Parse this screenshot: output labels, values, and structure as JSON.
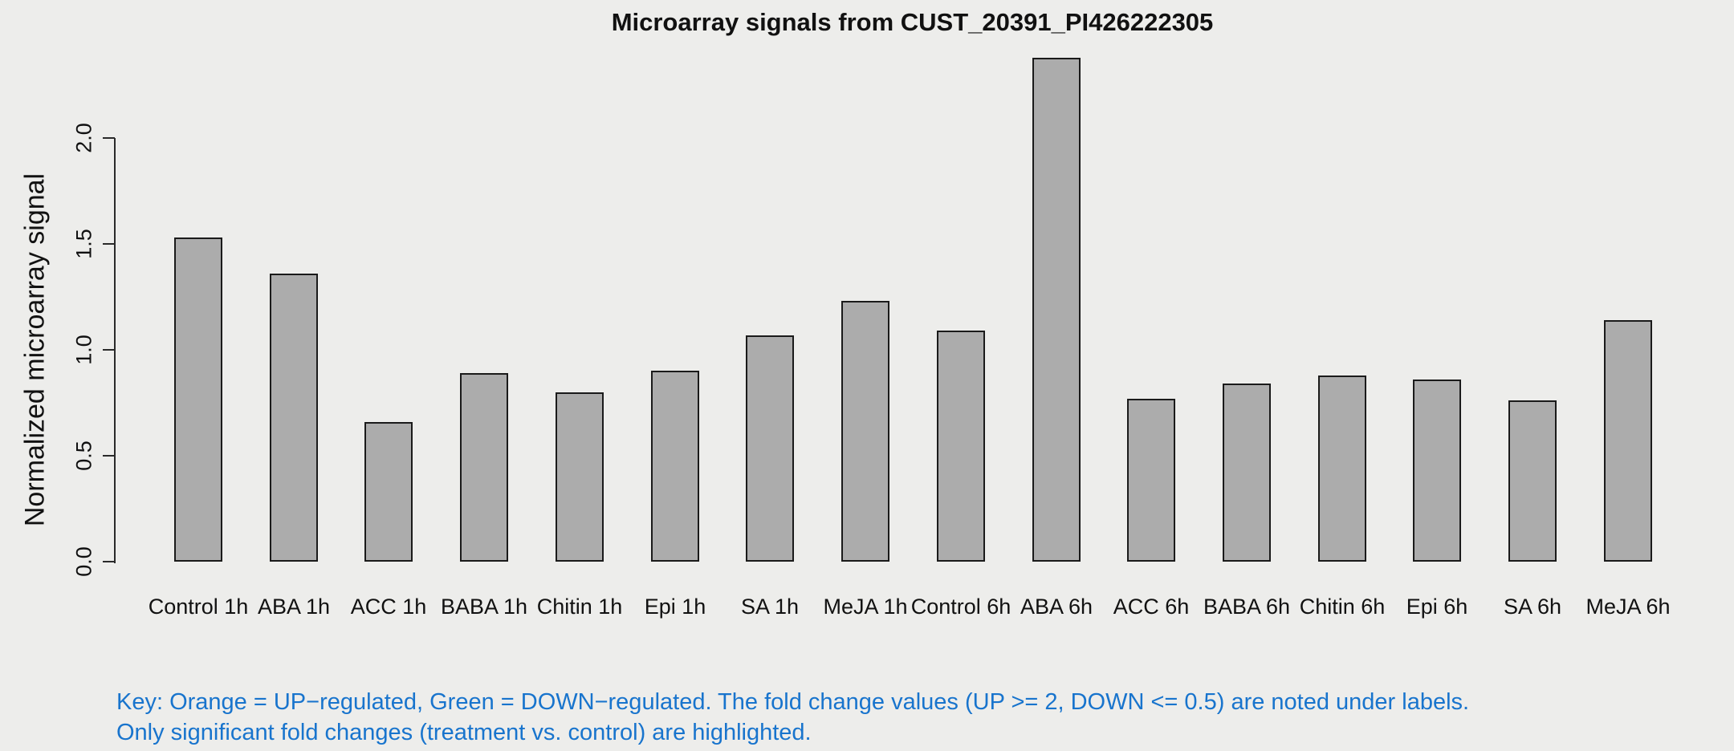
{
  "chart_data": {
    "type": "bar",
    "title": "Microarray signals from CUST_20391_PI426222305",
    "xlabel": "",
    "ylabel": "Normalized microarray signal",
    "categories": [
      "Control 1h",
      "ABA 1h",
      "ACC 1h",
      "BABA 1h",
      "Chitin 1h",
      "Epi 1h",
      "SA 1h",
      "MeJA 1h",
      "Control 6h",
      "ABA 6h",
      "ACC 6h",
      "BABA 6h",
      "Chitin 6h",
      "Epi 6h",
      "SA 6h",
      "MeJA 6h"
    ],
    "values": [
      1.53,
      1.36,
      0.66,
      0.89,
      0.8,
      0.9,
      1.07,
      1.23,
      1.09,
      2.38,
      0.77,
      0.84,
      0.88,
      0.86,
      0.76,
      1.14
    ],
    "yticks": [
      0.0,
      0.5,
      1.0,
      1.5,
      2.0
    ],
    "ytick_labels": [
      "0.0",
      "0.5",
      "1.0",
      "1.5",
      "2.0"
    ],
    "ylim": [
      0,
      2.43
    ],
    "grid": false,
    "legend": null,
    "colors": {
      "background": "#EDEDEB",
      "bar_fill": "#ACACAC",
      "bar_border": "#1A1A1A",
      "axis": "#2A2A2A",
      "text": "#111111"
    }
  },
  "annotation": {
    "color": "#1874CD",
    "lines": [
      "Key: Orange = UP−regulated, Green = DOWN−regulated. The fold change values (UP >= 2, DOWN <= 0.5) are noted under labels.",
      "Only significant fold changes (treatment vs. control) are highlighted."
    ]
  }
}
